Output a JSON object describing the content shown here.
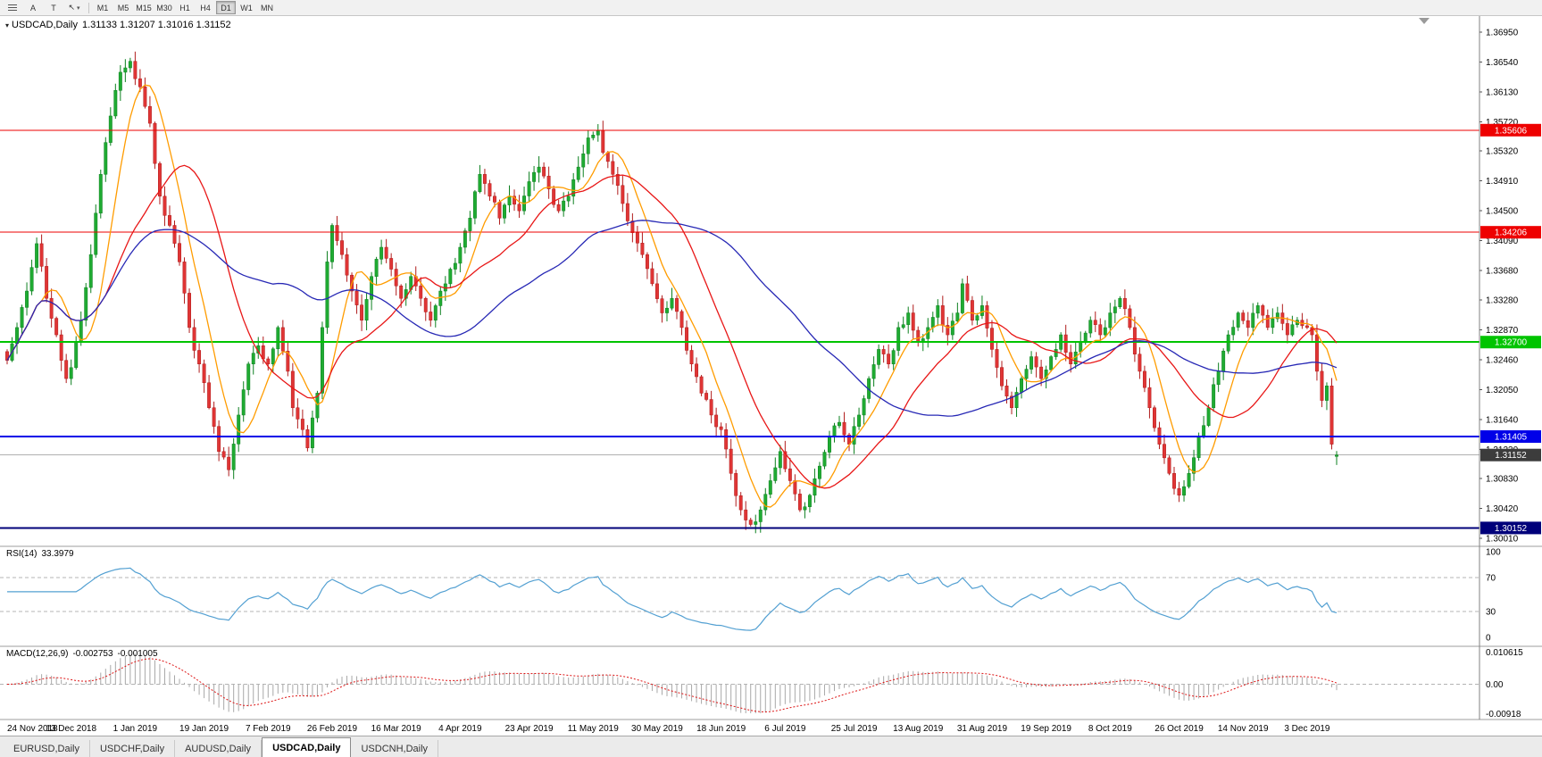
{
  "toolbar": {
    "menu_icon_name": "menu-icon",
    "tool_a": "A",
    "tool_t": "T",
    "cursor_glyph": "↖",
    "caret_glyph": "▾",
    "timeframes": [
      "M1",
      "M5",
      "M15",
      "M30",
      "H1",
      "H4",
      "D1",
      "W1",
      "MN"
    ],
    "active_timeframe": "D1"
  },
  "chart": {
    "title_icon": "▾",
    "symbol_title": "USDCAD,Daily",
    "ohlc_text": "1.31133 1.31207 1.31016 1.31152"
  },
  "tabs": {
    "items": [
      "EURUSD,Daily",
      "USDCHF,Daily",
      "AUDUSD,Daily",
      "USDCAD,Daily",
      "USDCNH,Daily"
    ],
    "active_index": 3
  },
  "chart_data": {
    "type": "candlestick",
    "symbol": "USDCAD",
    "timeframe": "Daily",
    "last_candle": {
      "open": 1.31133,
      "high": 1.31207,
      "low": 1.31016,
      "close": 1.31152
    },
    "bar_count": 271,
    "price_axis": {
      "min": 1.299,
      "max": 1.3717,
      "ticks": [
        "1.36950",
        "1.36540",
        "1.36130",
        "1.35720",
        "1.35320",
        "1.34910",
        "1.34500",
        "1.34090",
        "1.33680",
        "1.33280",
        "1.32870",
        "1.32460",
        "1.32050",
        "1.31640",
        "1.31230",
        "1.30830",
        "1.30420",
        "1.30010"
      ]
    },
    "candle_colors": {
      "up": "#1fab32",
      "up_stroke": "#0d8020",
      "down": "#e03535",
      "down_stroke": "#b01d1d"
    },
    "moving_averages": [
      {
        "name": "fast",
        "period": 8,
        "color": "#ff9c00"
      },
      {
        "name": "medium",
        "period": 21,
        "color": "#e81717"
      },
      {
        "name": "slow",
        "period": 55,
        "color": "#2728b5"
      }
    ],
    "horizontal_levels": [
      {
        "label": "1.35606",
        "price": 1.35606,
        "color": "#ee0000",
        "width": 1
      },
      {
        "label": "1.34206",
        "price": 1.34206,
        "color": "#ee0000",
        "width": 1
      },
      {
        "label": "1.32700",
        "price": 1.327,
        "color": "#00c400",
        "width": 2
      },
      {
        "label": "1.31405",
        "price": 1.31405,
        "color": "#0000e8",
        "width": 2
      },
      {
        "label": "1.30152",
        "price": 1.30152,
        "color": "#00007a",
        "width": 2
      }
    ],
    "current_price": {
      "label": "1.31152",
      "price": 1.31152,
      "line_color": "#b0b0b0",
      "color": "#3c3c3c"
    },
    "price_anchors": [
      [
        0,
        1.3245
      ],
      [
        2,
        1.329
      ],
      [
        4,
        1.334
      ],
      [
        6,
        1.3405
      ],
      [
        8,
        1.333
      ],
      [
        10,
        1.328
      ],
      [
        12,
        1.322
      ],
      [
        13,
        1.3235
      ],
      [
        15,
        1.33
      ],
      [
        17,
        1.339
      ],
      [
        19,
        1.35
      ],
      [
        21,
        1.358
      ],
      [
        23,
        1.364
      ],
      [
        25,
        1.3655
      ],
      [
        27,
        1.362
      ],
      [
        29,
        1.357
      ],
      [
        31,
        1.347
      ],
      [
        33,
        1.343
      ],
      [
        35,
        1.338
      ],
      [
        37,
        1.329
      ],
      [
        39,
        1.324
      ],
      [
        41,
        1.318
      ],
      [
        43,
        1.312
      ],
      [
        45,
        1.3095
      ],
      [
        47,
        1.317
      ],
      [
        49,
        1.324
      ],
      [
        51,
        1.3265
      ],
      [
        53,
        1.324
      ],
      [
        55,
        1.329
      ],
      [
        57,
        1.323
      ],
      [
        58,
        1.318
      ],
      [
        60,
        1.315
      ],
      [
        61,
        1.3125
      ],
      [
        63,
        1.32
      ],
      [
        64,
        1.329
      ],
      [
        65,
        1.338
      ],
      [
        66,
        1.343
      ],
      [
        68,
        1.339
      ],
      [
        70,
        1.334
      ],
      [
        72,
        1.33
      ],
      [
        74,
        1.336
      ],
      [
        76,
        1.34
      ],
      [
        78,
        1.337
      ],
      [
        80,
        1.333
      ],
      [
        82,
        1.336
      ],
      [
        84,
        1.333
      ],
      [
        86,
        1.33
      ],
      [
        88,
        1.334
      ],
      [
        90,
        1.337
      ],
      [
        92,
        1.34
      ],
      [
        94,
        1.344
      ],
      [
        96,
        1.35
      ],
      [
        98,
        1.347
      ],
      [
        100,
        1.344
      ],
      [
        102,
        1.347
      ],
      [
        104,
        1.345
      ],
      [
        106,
        1.349
      ],
      [
        108,
        1.351
      ],
      [
        110,
        1.348
      ],
      [
        112,
        1.345
      ],
      [
        114,
        1.347
      ],
      [
        116,
        1.351
      ],
      [
        118,
        1.355
      ],
      [
        120,
        1.356
      ],
      [
        121,
        1.353
      ],
      [
        123,
        1.35
      ],
      [
        125,
        1.346
      ],
      [
        127,
        1.342
      ],
      [
        129,
        1.339
      ],
      [
        131,
        1.335
      ],
      [
        133,
        1.331
      ],
      [
        135,
        1.333
      ],
      [
        137,
        1.329
      ],
      [
        139,
        1.324
      ],
      [
        141,
        1.32
      ],
      [
        143,
        1.317
      ],
      [
        145,
        1.315
      ],
      [
        147,
        1.309
      ],
      [
        149,
        1.304
      ],
      [
        151,
        1.302
      ],
      [
        153,
        1.304
      ],
      [
        155,
        1.308
      ],
      [
        157,
        1.312
      ],
      [
        159,
        1.308
      ],
      [
        161,
        1.304
      ],
      [
        163,
        1.306
      ],
      [
        165,
        1.31
      ],
      [
        167,
        1.314
      ],
      [
        169,
        1.316
      ],
      [
        171,
        1.313
      ],
      [
        173,
        1.317
      ],
      [
        175,
        1.322
      ],
      [
        177,
        1.326
      ],
      [
        179,
        1.324
      ],
      [
        181,
        1.329
      ],
      [
        183,
        1.331
      ],
      [
        185,
        1.327
      ],
      [
        187,
        1.329
      ],
      [
        189,
        1.332
      ],
      [
        191,
        1.328
      ],
      [
        193,
        1.331
      ],
      [
        194,
        1.335
      ],
      [
        196,
        1.33
      ],
      [
        198,
        1.332
      ],
      [
        200,
        1.326
      ],
      [
        202,
        1.321
      ],
      [
        204,
        1.318
      ],
      [
        206,
        1.322
      ],
      [
        208,
        1.325
      ],
      [
        210,
        1.322
      ],
      [
        212,
        1.325
      ],
      [
        214,
        1.328
      ],
      [
        216,
        1.324
      ],
      [
        218,
        1.327
      ],
      [
        220,
        1.33
      ],
      [
        222,
        1.328
      ],
      [
        224,
        1.331
      ],
      [
        226,
        1.333
      ],
      [
        228,
        1.329
      ],
      [
        230,
        1.323
      ],
      [
        232,
        1.318
      ],
      [
        234,
        1.313
      ],
      [
        236,
        1.309
      ],
      [
        238,
        1.306
      ],
      [
        240,
        1.309
      ],
      [
        242,
        1.314
      ],
      [
        244,
        1.318
      ],
      [
        246,
        1.323
      ],
      [
        248,
        1.328
      ],
      [
        250,
        1.331
      ],
      [
        252,
        1.329
      ],
      [
        254,
        1.332
      ],
      [
        256,
        1.329
      ],
      [
        258,
        1.331
      ],
      [
        260,
        1.328
      ],
      [
        262,
        1.33
      ],
      [
        264,
        1.329
      ],
      [
        265,
        1.328
      ],
      [
        266,
        1.323
      ],
      [
        267,
        1.319
      ],
      [
        268,
        1.321
      ],
      [
        269,
        1.313
      ],
      [
        270,
        1.31152
      ]
    ],
    "date_labels": [
      {
        "bar": 0,
        "label": "24 Nov 2018"
      },
      {
        "bar": 13,
        "label": "13 Dec 2018"
      },
      {
        "bar": 26,
        "label": "1 Jan 2019"
      },
      {
        "bar": 40,
        "label": "19 Jan 2019"
      },
      {
        "bar": 53,
        "label": "7 Feb 2019"
      },
      {
        "bar": 66,
        "label": "26 Feb 2019"
      },
      {
        "bar": 79,
        "label": "16 Mar 2019"
      },
      {
        "bar": 92,
        "label": "4 Apr 2019"
      },
      {
        "bar": 106,
        "label": "23 Apr 2019"
      },
      {
        "bar": 119,
        "label": "11 May 2019"
      },
      {
        "bar": 132,
        "label": "30 May 2019"
      },
      {
        "bar": 145,
        "label": "18 Jun 2019"
      },
      {
        "bar": 158,
        "label": "6 Jul 2019"
      },
      {
        "bar": 172,
        "label": "25 Jul 2019"
      },
      {
        "bar": 185,
        "label": "13 Aug 2019"
      },
      {
        "bar": 198,
        "label": "31 Aug 2019"
      },
      {
        "bar": 211,
        "label": "19 Sep 2019"
      },
      {
        "bar": 224,
        "label": "8 Oct 2019"
      },
      {
        "bar": 238,
        "label": "26 Oct 2019"
      },
      {
        "bar": 251,
        "label": "14 Nov 2019"
      },
      {
        "bar": 264,
        "label": "3 Dec 2019"
      }
    ],
    "rsi": {
      "label": "RSI(14)",
      "value": "33.3979",
      "period": 14,
      "axis_ticks": [
        100,
        70,
        30,
        0
      ],
      "levels": [
        70,
        30
      ],
      "color": "#53a0d2"
    },
    "macd": {
      "label": "MACD(12,26,9)",
      "main_value": "-0.002753",
      "signal_value": "-0.001005",
      "fast": 12,
      "slow": 26,
      "signal": 9,
      "axis_ticks": [
        "0.010615",
        "0.00",
        "-0.00918"
      ],
      "axis_max": 0.010615,
      "axis_min": -0.00918,
      "histogram_color": "#a8a8a8",
      "signal_color": "#dd1515"
    }
  }
}
